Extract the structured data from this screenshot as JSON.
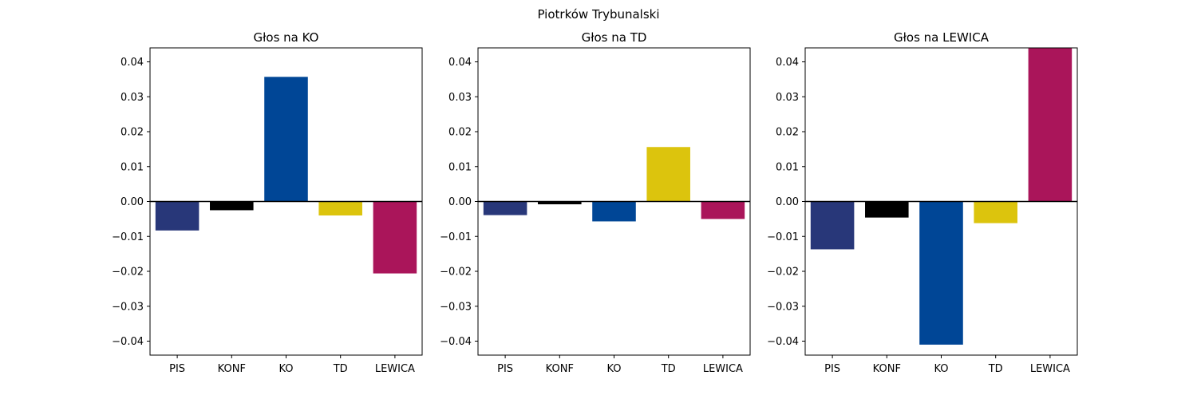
{
  "figure": {
    "suptitle": "Piotrków Trybunalski"
  },
  "party_colors": {
    "PIS": "#283779",
    "KONF": "#000000",
    "KO": "#004696",
    "TD": "#DCC40D",
    "LEWICA": "#AA155A"
  },
  "chart_data": [
    {
      "type": "bar",
      "title": "Głos na KO",
      "categories": [
        "PIS",
        "KONF",
        "KO",
        "TD",
        "LEWICA"
      ],
      "values": [
        -0.0083,
        -0.0025,
        0.0357,
        -0.004,
        -0.0206
      ],
      "ylim": [
        -0.044,
        0.044
      ],
      "yticks": [
        "0.04",
        "0.03",
        "0.02",
        "0.01",
        "0.00",
        "−0.01",
        "−0.02",
        "−0.03",
        "−0.04"
      ],
      "xlabel": "",
      "ylabel": "",
      "grid": false
    },
    {
      "type": "bar",
      "title": "Głos na TD",
      "categories": [
        "PIS",
        "KONF",
        "KO",
        "TD",
        "LEWICA"
      ],
      "values": [
        -0.0039,
        -0.0008,
        -0.0057,
        0.0156,
        -0.005
      ],
      "ylim": [
        -0.044,
        0.044
      ],
      "yticks": [
        "0.04",
        "0.03",
        "0.02",
        "0.01",
        "0.00",
        "−0.01",
        "−0.02",
        "−0.03",
        "−0.04"
      ],
      "xlabel": "",
      "ylabel": "",
      "grid": false
    },
    {
      "type": "bar",
      "title": "Głos na LEWICA",
      "categories": [
        "PIS",
        "KONF",
        "KO",
        "TD",
        "LEWICA"
      ],
      "values": [
        -0.0137,
        -0.0046,
        -0.041,
        -0.0062,
        0.044
      ],
      "ylim": [
        -0.044,
        0.044
      ],
      "yticks": [
        "0.04",
        "0.03",
        "0.02",
        "0.01",
        "0.00",
        "−0.01",
        "−0.02",
        "−0.03",
        "−0.04"
      ],
      "xlabel": "",
      "ylabel": "",
      "grid": false
    }
  ]
}
